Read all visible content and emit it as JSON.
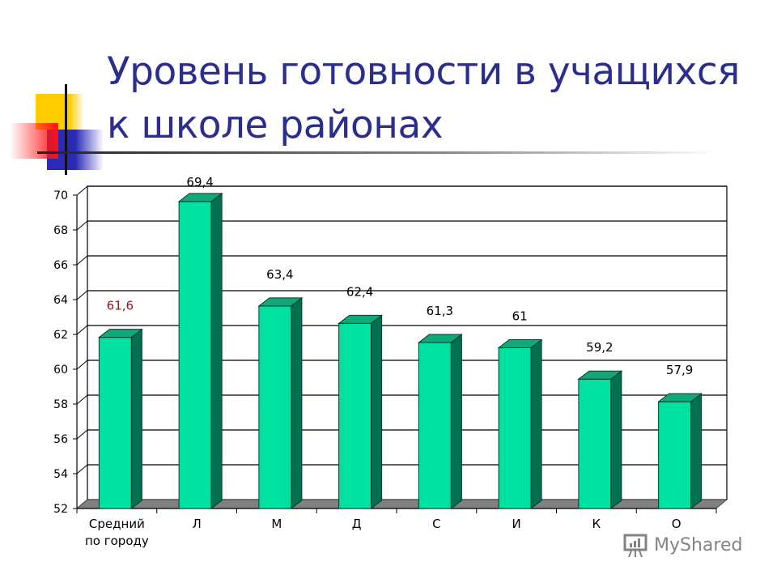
{
  "title": {
    "line1": "Уровень готовности в учащихся",
    "line2": "к школе районах"
  },
  "chart_data": {
    "type": "bar",
    "style": "3d-column",
    "title": "Уровень готовности в учащихся к школе районах",
    "xlabel": "",
    "ylabel": "",
    "categories": [
      "Средний по городу",
      "Л",
      "М",
      "Д",
      "С",
      "И",
      "К",
      "О"
    ],
    "category_lines": [
      [
        "Средний",
        "по городу"
      ],
      [
        "Л"
      ],
      [
        "М"
      ],
      [
        "Д"
      ],
      [
        "С"
      ],
      [
        "И"
      ],
      [
        "К"
      ],
      [
        "О"
      ]
    ],
    "values": [
      61.6,
      69.4,
      63.4,
      62.4,
      61.3,
      61,
      59.2,
      57.9
    ],
    "value_labels": [
      "61,6",
      "69,4",
      "63,4",
      "62,4",
      "61,3",
      "61",
      "59,2",
      "57,9"
    ],
    "highlighted_label_index": 0,
    "ylim": [
      52,
      70
    ],
    "yticks": [
      52,
      54,
      56,
      58,
      60,
      62,
      64,
      66,
      68,
      70
    ],
    "grid": true,
    "legend": "none",
    "colors": {
      "bar_front": "#00e0a0",
      "bar_side": "#007050",
      "bar_top": "#10a878",
      "floor": "#808080",
      "highlight_label": "#8b1a1a",
      "label": "#000000"
    }
  },
  "watermark": {
    "text": "MyShared"
  },
  "colors": {
    "title": "#2b2e8c",
    "deco_yellow": "#ffcc00",
    "deco_red": "#ff2020",
    "deco_blue": "#2a2ab8"
  }
}
